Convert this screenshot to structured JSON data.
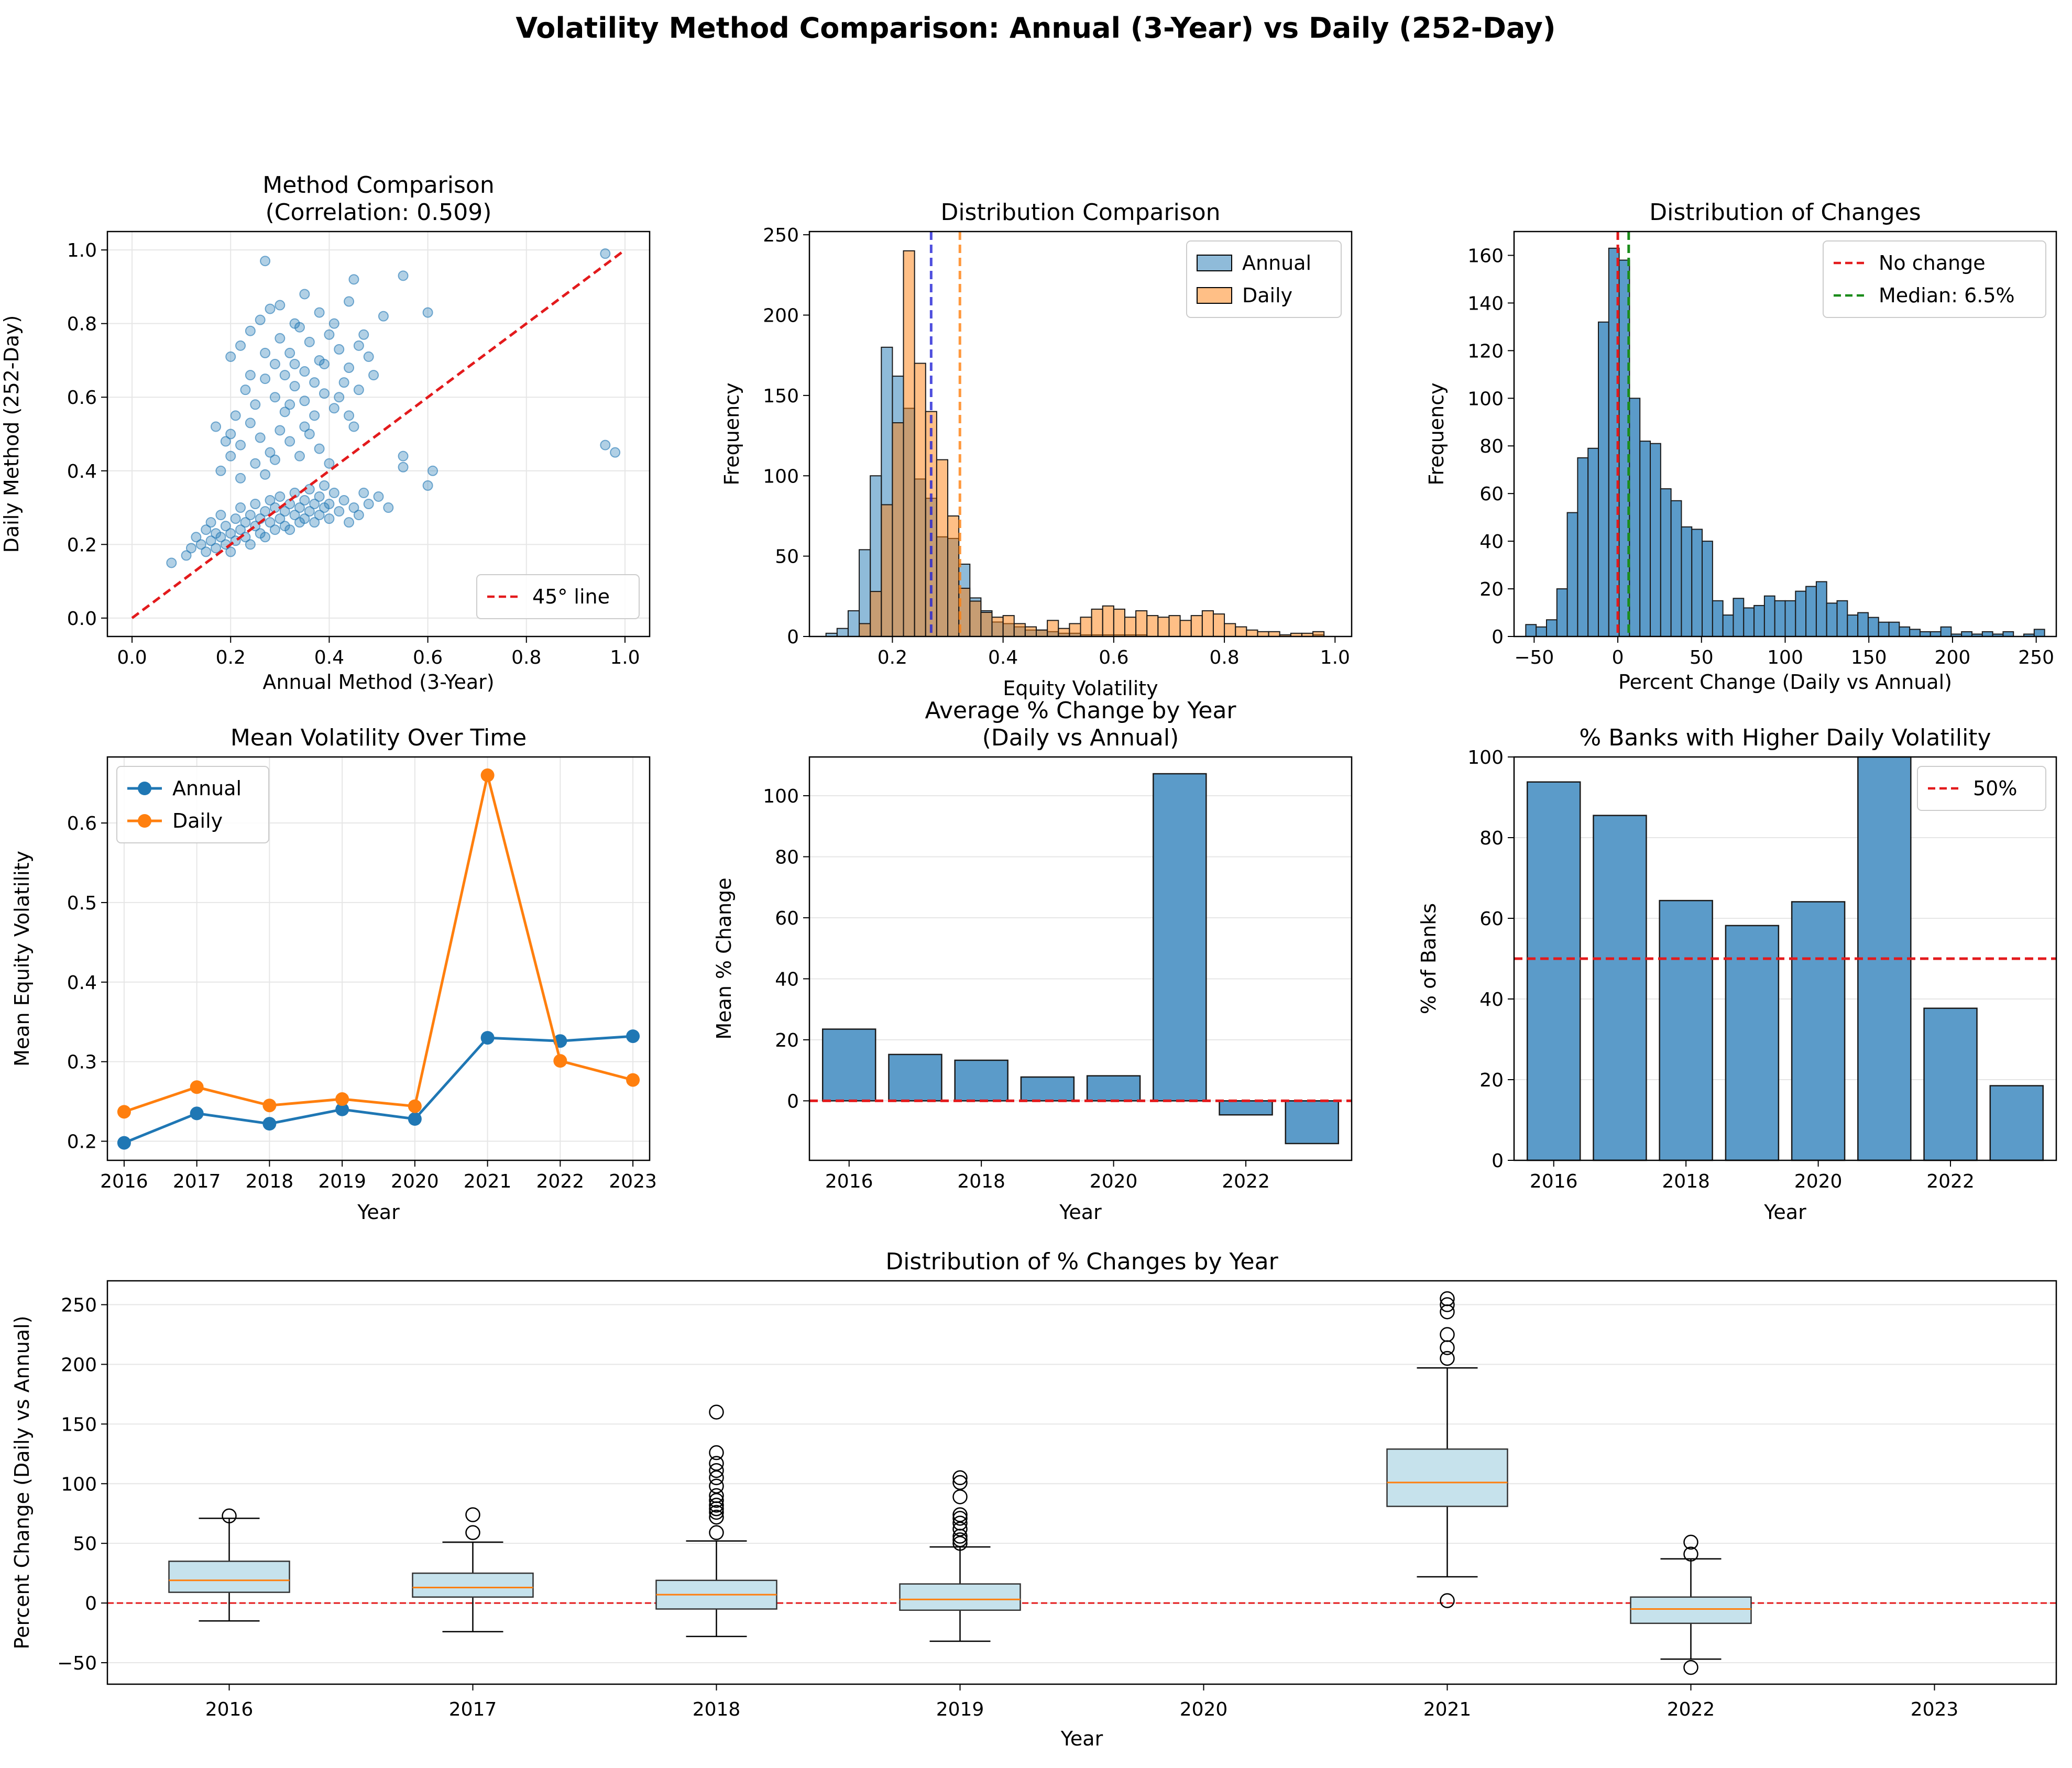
{
  "figure": {
    "title": "Volatility Method Comparison: Annual (3-Year) vs Daily (252-Day)",
    "colors": {
      "annual": "#1f77b4",
      "daily": "#ff7f0e",
      "bar": "#5b9bc9",
      "box_fill": "#c6e2ec",
      "median": "#ff7f0e",
      "ref_red": "#e31a1c",
      "ref_green": "#1a8c1a",
      "grid": "#e6e6e6"
    }
  },
  "chart_data": [
    {
      "type": "scatter",
      "title": "Method Comparison\n(Correlation: 0.509)",
      "xlabel": "Annual Method (3-Year)",
      "ylabel": "Daily Method (252-Day)",
      "xlim": [
        -0.05,
        1.05
      ],
      "ylim": [
        -0.05,
        1.05
      ],
      "xticks": [
        "0.0",
        "0.2",
        "0.4",
        "0.6",
        "0.8",
        "1.0"
      ],
      "yticks": [
        "0.0",
        "0.2",
        "0.4",
        "0.6",
        "0.8",
        "1.0"
      ],
      "grid": true,
      "legend": {
        "position": "lower-right",
        "entries": [
          "45° line"
        ]
      },
      "reference_line": {
        "name": "45° line",
        "from": [
          0,
          0
        ],
        "to": [
          1,
          1
        ]
      },
      "points": [
        [
          0.13,
          0.22
        ],
        [
          0.14,
          0.2
        ],
        [
          0.15,
          0.18
        ],
        [
          0.15,
          0.24
        ],
        [
          0.16,
          0.21
        ],
        [
          0.16,
          0.26
        ],
        [
          0.17,
          0.19
        ],
        [
          0.17,
          0.23
        ],
        [
          0.18,
          0.22
        ],
        [
          0.18,
          0.28
        ],
        [
          0.19,
          0.2
        ],
        [
          0.19,
          0.25
        ],
        [
          0.2,
          0.23
        ],
        [
          0.2,
          0.18
        ],
        [
          0.21,
          0.27
        ],
        [
          0.21,
          0.21
        ],
        [
          0.22,
          0.24
        ],
        [
          0.22,
          0.3
        ],
        [
          0.23,
          0.22
        ],
        [
          0.23,
          0.26
        ],
        [
          0.24,
          0.2
        ],
        [
          0.24,
          0.28
        ],
        [
          0.25,
          0.25
        ],
        [
          0.25,
          0.31
        ],
        [
          0.26,
          0.23
        ],
        [
          0.26,
          0.27
        ],
        [
          0.27,
          0.29
        ],
        [
          0.27,
          0.22
        ],
        [
          0.28,
          0.26
        ],
        [
          0.28,
          0.32
        ],
        [
          0.29,
          0.24
        ],
        [
          0.29,
          0.3
        ],
        [
          0.3,
          0.27
        ],
        [
          0.3,
          0.33
        ],
        [
          0.31,
          0.25
        ],
        [
          0.31,
          0.29
        ],
        [
          0.32,
          0.31
        ],
        [
          0.32,
          0.24
        ],
        [
          0.33,
          0.28
        ],
        [
          0.33,
          0.34
        ],
        [
          0.34,
          0.26
        ],
        [
          0.34,
          0.3
        ],
        [
          0.35,
          0.32
        ],
        [
          0.35,
          0.27
        ],
        [
          0.36,
          0.29
        ],
        [
          0.36,
          0.35
        ],
        [
          0.37,
          0.31
        ],
        [
          0.37,
          0.26
        ],
        [
          0.38,
          0.28
        ],
        [
          0.38,
          0.33
        ],
        [
          0.39,
          0.3
        ],
        [
          0.39,
          0.36
        ],
        [
          0.4,
          0.27
        ],
        [
          0.4,
          0.31
        ],
        [
          0.41,
          0.34
        ],
        [
          0.42,
          0.29
        ],
        [
          0.43,
          0.32
        ],
        [
          0.44,
          0.26
        ],
        [
          0.45,
          0.3
        ],
        [
          0.46,
          0.28
        ],
        [
          0.47,
          0.34
        ],
        [
          0.48,
          0.31
        ],
        [
          0.5,
          0.33
        ],
        [
          0.52,
          0.3
        ],
        [
          0.08,
          0.15
        ],
        [
          0.11,
          0.17
        ],
        [
          0.12,
          0.19
        ],
        [
          0.55,
          0.41
        ],
        [
          0.55,
          0.44
        ],
        [
          0.6,
          0.36
        ],
        [
          0.61,
          0.4
        ],
        [
          0.55,
          0.93
        ],
        [
          0.27,
          0.97
        ],
        [
          0.96,
          0.99
        ],
        [
          0.96,
          0.47
        ],
        [
          0.98,
          0.45
        ],
        [
          0.6,
          0.83
        ],
        [
          0.45,
          0.92
        ],
        [
          0.35,
          0.88
        ],
        [
          0.2,
          0.71
        ],
        [
          0.22,
          0.74
        ],
        [
          0.24,
          0.78
        ],
        [
          0.26,
          0.81
        ],
        [
          0.28,
          0.84
        ],
        [
          0.3,
          0.76
        ],
        [
          0.32,
          0.72
        ],
        [
          0.34,
          0.79
        ],
        [
          0.36,
          0.75
        ],
        [
          0.38,
          0.7
        ],
        [
          0.4,
          0.77
        ],
        [
          0.42,
          0.73
        ],
        [
          0.44,
          0.68
        ],
        [
          0.46,
          0.74
        ],
        [
          0.48,
          0.71
        ],
        [
          0.23,
          0.62
        ],
        [
          0.25,
          0.58
        ],
        [
          0.27,
          0.65
        ],
        [
          0.29,
          0.6
        ],
        [
          0.31,
          0.56
        ],
        [
          0.33,
          0.63
        ],
        [
          0.35,
          0.59
        ],
        [
          0.37,
          0.55
        ],
        [
          0.39,
          0.61
        ],
        [
          0.41,
          0.57
        ],
        [
          0.43,
          0.64
        ],
        [
          0.45,
          0.52
        ],
        [
          0.2,
          0.5
        ],
        [
          0.22,
          0.47
        ],
        [
          0.24,
          0.53
        ],
        [
          0.26,
          0.49
        ],
        [
          0.28,
          0.45
        ],
        [
          0.3,
          0.51
        ],
        [
          0.32,
          0.48
        ],
        [
          0.34,
          0.44
        ],
        [
          0.36,
          0.5
        ],
        [
          0.38,
          0.46
        ],
        [
          0.4,
          0.42
        ],
        [
          0.18,
          0.4
        ],
        [
          0.2,
          0.44
        ],
        [
          0.22,
          0.38
        ],
        [
          0.25,
          0.42
        ],
        [
          0.27,
          0.39
        ],
        [
          0.29,
          0.43
        ],
        [
          0.17,
          0.52
        ],
        [
          0.19,
          0.48
        ],
        [
          0.31,
          0.66
        ],
        [
          0.33,
          0.69
        ],
        [
          0.35,
          0.67
        ],
        [
          0.3,
          0.85
        ],
        [
          0.33,
          0.8
        ],
        [
          0.38,
          0.83
        ],
        [
          0.41,
          0.8
        ],
        [
          0.47,
          0.77
        ],
        [
          0.49,
          0.66
        ],
        [
          0.51,
          0.82
        ],
        [
          0.44,
          0.86
        ],
        [
          0.21,
          0.55
        ],
        [
          0.24,
          0.66
        ],
        [
          0.27,
          0.72
        ],
        [
          0.29,
          0.69
        ],
        [
          0.32,
          0.58
        ],
        [
          0.35,
          0.52
        ],
        [
          0.37,
          0.64
        ],
        [
          0.39,
          0.69
        ],
        [
          0.42,
          0.6
        ],
        [
          0.44,
          0.55
        ],
        [
          0.46,
          0.62
        ]
      ]
    },
    {
      "type": "histogram",
      "title": "Distribution Comparison",
      "xlabel": "Equity Volatility",
      "ylabel": "Frequency",
      "xlim": [
        0.05,
        1.03
      ],
      "ylim": [
        0,
        252
      ],
      "xticks": [
        "0.2",
        "0.4",
        "0.6",
        "0.8",
        "1.0"
      ],
      "yticks": [
        "0",
        "50",
        "100",
        "150",
        "200",
        "250"
      ],
      "grid": false,
      "legend": {
        "position": "top-right",
        "entries": [
          "Annual",
          "Daily"
        ]
      },
      "series": [
        {
          "name": "Annual",
          "bins_start": 0.08,
          "bin_width": 0.02,
          "counts": [
            2,
            5,
            16,
            54,
            100,
            180,
            162,
            142,
            98,
            86,
            62,
            61,
            45,
            24,
            16,
            9,
            8,
            6,
            4,
            4,
            3,
            2,
            2,
            1,
            1,
            1,
            1,
            1,
            1,
            0,
            0,
            0,
            0,
            0,
            0,
            0,
            0,
            0,
            0,
            0,
            0,
            0,
            0,
            0,
            1
          ]
        },
        {
          "name": "Daily",
          "bin_edges": [
            0.14,
            0.16,
            0.18,
            0.2,
            0.22,
            0.24,
            0.26,
            0.28,
            0.3,
            0.32,
            0.34,
            0.36,
            0.38,
            0.4,
            0.42,
            0.44,
            0.46,
            0.48,
            0.5,
            0.52,
            0.54,
            0.56,
            0.58,
            0.6,
            0.62,
            0.64,
            0.66,
            0.68,
            0.7,
            0.72,
            0.74,
            0.76,
            0.78,
            0.8,
            0.82,
            0.84,
            0.86,
            0.88,
            0.9,
            0.92,
            0.94,
            0.96,
            0.98
          ],
          "counts": [
            8,
            28,
            82,
            133,
            240,
            170,
            140,
            110,
            75,
            30,
            22,
            15,
            12,
            13,
            8,
            6,
            4,
            10,
            5,
            8,
            12,
            17,
            19,
            17,
            12,
            16,
            13,
            12,
            13,
            10,
            13,
            16,
            14,
            8,
            6,
            4,
            3,
            3,
            1,
            2,
            2,
            3
          ]
        }
      ],
      "vlines": [
        {
          "x": 0.27,
          "series": "Annual"
        },
        {
          "x": 0.322,
          "series": "Daily"
        }
      ]
    },
    {
      "type": "histogram",
      "title": "Distribution of Changes",
      "xlabel": "Percent Change (Daily vs Annual)",
      "ylabel": "Frequency",
      "xlim": [
        -62,
        262
      ],
      "ylim": [
        0,
        170
      ],
      "xticks": [
        "−50",
        "0",
        "50",
        "100",
        "150",
        "200",
        "250"
      ],
      "yticks": [
        "0",
        "20",
        "40",
        "60",
        "80",
        "100",
        "120",
        "140",
        "160"
      ],
      "grid": false,
      "legend": {
        "position": "top-right",
        "entries": [
          "No change",
          "Median: 6.5%"
        ]
      },
      "bins_start": -55,
      "bin_width": 6.2,
      "counts": [
        5,
        4,
        7,
        20,
        52,
        75,
        79,
        132,
        163,
        158,
        100,
        82,
        81,
        62,
        57,
        46,
        45,
        40,
        15,
        9,
        16,
        12,
        13,
        17,
        15,
        15,
        19,
        21,
        23,
        14,
        15,
        9,
        10,
        8,
        6,
        6,
        4,
        3,
        2,
        2,
        4,
        1,
        2,
        1,
        2,
        1,
        2,
        0,
        1,
        3
      ],
      "vlines": [
        {
          "x": 0,
          "label": "No change"
        },
        {
          "x": 6.5,
          "label": "Median: 6.5%"
        }
      ]
    },
    {
      "type": "line",
      "title": "Mean Volatility Over Time",
      "xlabel": "Year",
      "ylabel": "Mean Equity Volatility",
      "x": [
        2016,
        2017,
        2018,
        2019,
        2020,
        2021,
        2022,
        2023
      ],
      "xticks": [
        "2016",
        "2017",
        "2018",
        "2019",
        "2020",
        "2021",
        "2022",
        "2023"
      ],
      "yticks": [
        "0.2",
        "0.3",
        "0.4",
        "0.5",
        "0.6"
      ],
      "xlim": [
        2015.77,
        2023.23
      ],
      "ylim": [
        0.176,
        0.683
      ],
      "grid": true,
      "legend": {
        "position": "top-left",
        "entries": [
          "Annual",
          "Daily"
        ]
      },
      "series": [
        {
          "name": "Annual",
          "values": [
            0.198,
            0.235,
            0.222,
            0.24,
            0.228,
            0.33,
            0.326,
            0.332
          ]
        },
        {
          "name": "Daily",
          "values": [
            0.237,
            0.268,
            0.245,
            0.253,
            0.244,
            0.66,
            0.301,
            0.277
          ]
        }
      ]
    },
    {
      "type": "bar",
      "title": "Average % Change by Year\n(Daily vs Annual)",
      "xlabel": "Year",
      "ylabel": "Mean % Change",
      "categories": [
        "2016",
        "2017",
        "2018",
        "2019",
        "2020",
        "2021",
        "2022",
        "2023"
      ],
      "values": [
        23.5,
        15.2,
        13.3,
        7.8,
        8.2,
        107.2,
        -4.6,
        -14.0
      ],
      "xticks": [
        "2016",
        "2018",
        "2020",
        "2022"
      ],
      "yticks": [
        "0",
        "20",
        "40",
        "60",
        "80",
        "100"
      ],
      "xlim": [
        2015.4,
        2023.6
      ],
      "ylim": [
        -19.5,
        112.7
      ],
      "grid": true,
      "reference_line": {
        "y": 0
      }
    },
    {
      "type": "bar",
      "title": "% Banks with Higher Daily Volatility",
      "xlabel": "Year",
      "ylabel": "% of Banks",
      "categories": [
        "2016",
        "2017",
        "2018",
        "2019",
        "2020",
        "2021",
        "2022",
        "2023"
      ],
      "values": [
        93.8,
        85.5,
        64.4,
        58.2,
        64.1,
        100,
        37.7,
        18.5
      ],
      "xticks": [
        "2016",
        "2018",
        "2020",
        "2022"
      ],
      "yticks": [
        "0",
        "20",
        "40",
        "60",
        "80",
        "100"
      ],
      "xlim": [
        2015.4,
        2023.6
      ],
      "ylim": [
        0,
        100
      ],
      "grid": true,
      "legend": {
        "position": "top-right",
        "entries": [
          "50%"
        ]
      },
      "reference_line": {
        "y": 50,
        "name": "50%"
      }
    },
    {
      "type": "box",
      "title": "Distribution of % Changes by Year",
      "xlabel": "Year",
      "ylabel": "Percent Change (Daily vs Annual)",
      "categories": [
        "2016",
        "2017",
        "2018",
        "2019",
        "2020",
        "2021",
        "2022",
        "2023"
      ],
      "yticks": [
        "−50",
        "0",
        "50",
        "100",
        "150",
        "200",
        "250"
      ],
      "ylim": [
        -68,
        270
      ],
      "grid": true,
      "reference_line": {
        "y": 0
      },
      "boxes": [
        {
          "q1": 9,
          "median": 19,
          "q3": 35,
          "whisker_low": -15,
          "whisker_high": 71,
          "outliers": [
            73
          ]
        },
        {
          "q1": 5,
          "median": 13,
          "q3": 25,
          "whisker_low": -24,
          "whisker_high": 51,
          "outliers": [
            59,
            74
          ]
        },
        {
          "q1": -5,
          "median": 7,
          "q3": 19,
          "whisker_low": -28,
          "whisker_high": 52,
          "outliers": [
            59,
            72,
            76,
            79,
            82,
            86,
            90,
            98,
            105,
            111,
            117,
            126,
            160
          ]
        },
        {
          "q1": -6,
          "median": 3,
          "q3": 16,
          "whisker_low": -32,
          "whisker_high": 47,
          "outliers": [
            50,
            53,
            56,
            62,
            67,
            71,
            74,
            89,
            101,
            105
          ]
        },
        null,
        {
          "q1": 81,
          "median": 101,
          "q3": 129,
          "whisker_low": 22,
          "whisker_high": 197,
          "outliers": [
            2,
            205,
            214,
            225,
            244,
            250,
            255
          ]
        },
        {
          "q1": -17,
          "median": -5,
          "q3": 5,
          "whisker_low": -47,
          "whisker_high": 37,
          "outliers": [
            41,
            51,
            -54
          ]
        },
        null
      ]
    }
  ]
}
